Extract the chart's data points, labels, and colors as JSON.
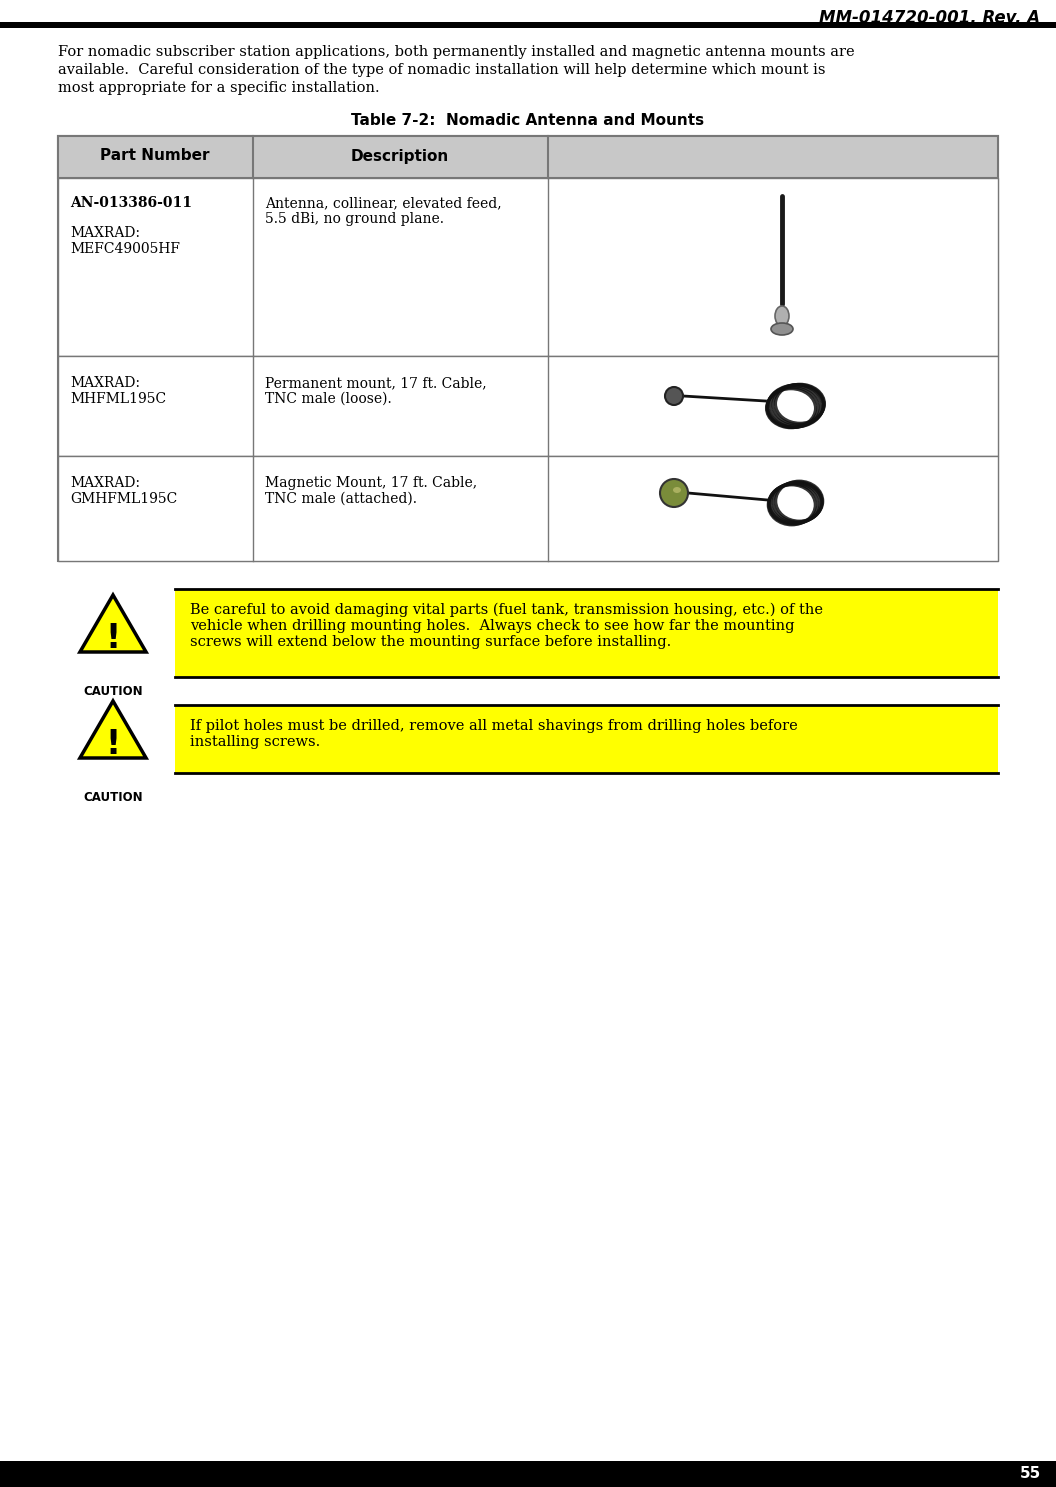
{
  "page_title": "MM-014720-001, Rev. A",
  "page_number": "55",
  "body_text_line1": "For nomadic subscriber station applications, both permanently installed and magnetic antenna mounts are",
  "body_text_line2": "available.  Careful consideration of the type of nomadic installation will help determine which mount is",
  "body_text_line3": "most appropriate for a specific installation.",
  "table_title": "Table 7-2:  Nomadic Antenna and Mounts",
  "col0_header": "Part Number",
  "col1_header": "Description",
  "row0_part_line1": "AN-013386-011",
  "row0_part_line2": "",
  "row0_part_line3": "MAXRAD:",
  "row0_part_line4": "MEFC49005HF",
  "row0_desc_line1": "Antenna, collinear, elevated feed,",
  "row0_desc_line2": "5.5 dBi, no ground plane.",
  "row1_part_line1": "MAXRAD:",
  "row1_part_line2": "MHFML195C",
  "row1_desc_line1": "Permanent mount, 17 ft. Cable,",
  "row1_desc_line2": "TNC male (loose).",
  "row2_part_line1": "MAXRAD:",
  "row2_part_line2": "GMHFML195C",
  "row2_desc_line1": "Magnetic Mount, 17 ft. Cable,",
  "row2_desc_line2": "TNC male (attached).",
  "caution_1_line1": "Be careful to avoid damaging vital parts (fuel tank, transmission housing, etc.) of the",
  "caution_1_line2": "vehicle when drilling mounting holes.  Always check to see how far the mounting",
  "caution_1_line3": "screws will extend below the mounting surface before installing.",
  "caution_2_line1": "If pilot holes must be drilled, remove all metal shavings from drilling holes before",
  "caution_2_line2": "installing screws.",
  "caution_label": "CAUTION",
  "bg_color": "#ffffff",
  "header_gray": "#c8c8c8",
  "caution_yellow": "#ffff00",
  "black": "#000000",
  "table_gray": "#777777"
}
